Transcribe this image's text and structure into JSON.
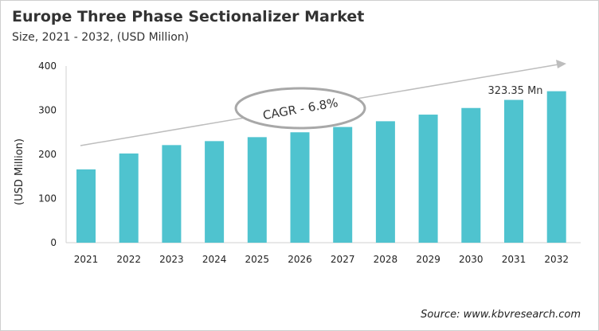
{
  "chart_data": {
    "type": "bar",
    "title": "Europe Three Phase Sectionalizer Market",
    "subtitle": "Size, 2021 - 2032, (USD Million)",
    "xlabel": "",
    "ylabel": "(USD Million)",
    "categories": [
      "2021",
      "2022",
      "2023",
      "2024",
      "2025",
      "2026",
      "2027",
      "2028",
      "2029",
      "2030",
      "2031",
      "2032"
    ],
    "values": [
      166,
      202,
      221,
      230,
      239,
      250,
      262,
      275,
      290,
      305,
      323.35,
      343
    ],
    "ylim": [
      0,
      400
    ],
    "yticks": [
      0,
      100,
      200,
      300,
      400
    ],
    "grid": false,
    "bar_color": "#4fc3cf",
    "annotations": {
      "cagr": "CAGR - 6.8%",
      "value_label": "323.35 Mn"
    },
    "source": "Source: www.kbvresearch.com"
  }
}
